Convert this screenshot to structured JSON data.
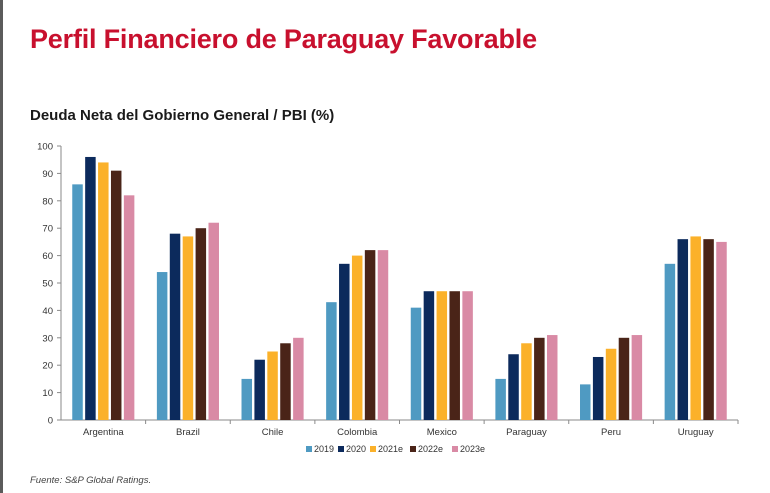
{
  "header": {
    "title": "Perfil Financiero de Paraguay Favorable"
  },
  "footer": {
    "source": "Fuente: S&P Global Ratings."
  },
  "chart_data": {
    "type": "bar",
    "title": "Deuda Neta del Gobierno General / PBI (%)",
    "xlabel": "",
    "ylabel": "",
    "ylim": [
      0,
      100
    ],
    "yticks": [
      0,
      10,
      20,
      30,
      40,
      50,
      60,
      70,
      80,
      90,
      100
    ],
    "grid": false,
    "legend_position": "bottom-center",
    "categories": [
      "Argentina",
      "Brazil",
      "Chile",
      "Colombia",
      "Mexico",
      "Paraguay",
      "Peru",
      "Uruguay"
    ],
    "series": [
      {
        "name": "2019",
        "color": "#4f9ac2",
        "values": [
          86,
          54,
          15,
          43,
          41,
          15,
          13,
          57
        ]
      },
      {
        "name": "2020",
        "color": "#0c2a5c",
        "values": [
          96,
          68,
          22,
          57,
          47,
          24,
          23,
          66
        ]
      },
      {
        "name": "2021e",
        "color": "#fbb12a",
        "values": [
          94,
          67,
          25,
          60,
          47,
          28,
          26,
          67
        ]
      },
      {
        "name": "2022e",
        "color": "#4a2418",
        "values": [
          91,
          70,
          28,
          62,
          47,
          30,
          30,
          66
        ]
      },
      {
        "name": "2023e",
        "color": "#d98aa5",
        "values": [
          82,
          72,
          30,
          62,
          47,
          31,
          31,
          65
        ]
      }
    ]
  }
}
